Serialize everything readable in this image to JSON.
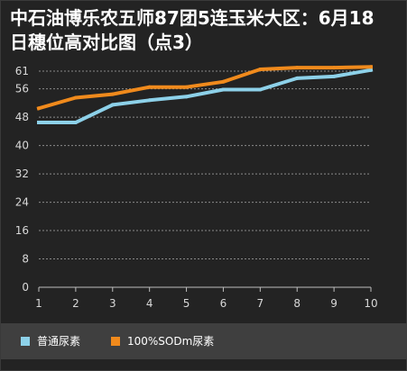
{
  "chart_data": {
    "type": "line",
    "title_lines": [
      "中石油博乐农五师87团5连玉米大区：6月18",
      "日穗位高对比图（点3）"
    ],
    "categories": [
      "1",
      "2",
      "3",
      "4",
      "5",
      "6",
      "7",
      "8",
      "9",
      "10"
    ],
    "yticks": [
      "0",
      "8",
      "16",
      "24",
      "32",
      "40",
      "48",
      "56",
      "61"
    ],
    "ylim": [
      0,
      61
    ],
    "grid": true,
    "legend_position": "bottom",
    "series": [
      {
        "name": "普通尿素",
        "color": "#8dd1e9",
        "values": [
          46.5,
          46.5,
          51.5,
          52.8,
          53.8,
          55.8,
          55.8,
          59.0,
          59.5,
          61.3
        ]
      },
      {
        "name": "100%SODm尿素",
        "color": "#f08a1c",
        "values": [
          50.5,
          53.5,
          54.5,
          56.5,
          56.5,
          58.0,
          61.5,
          62.0,
          62.0,
          62.6
        ]
      }
    ]
  }
}
